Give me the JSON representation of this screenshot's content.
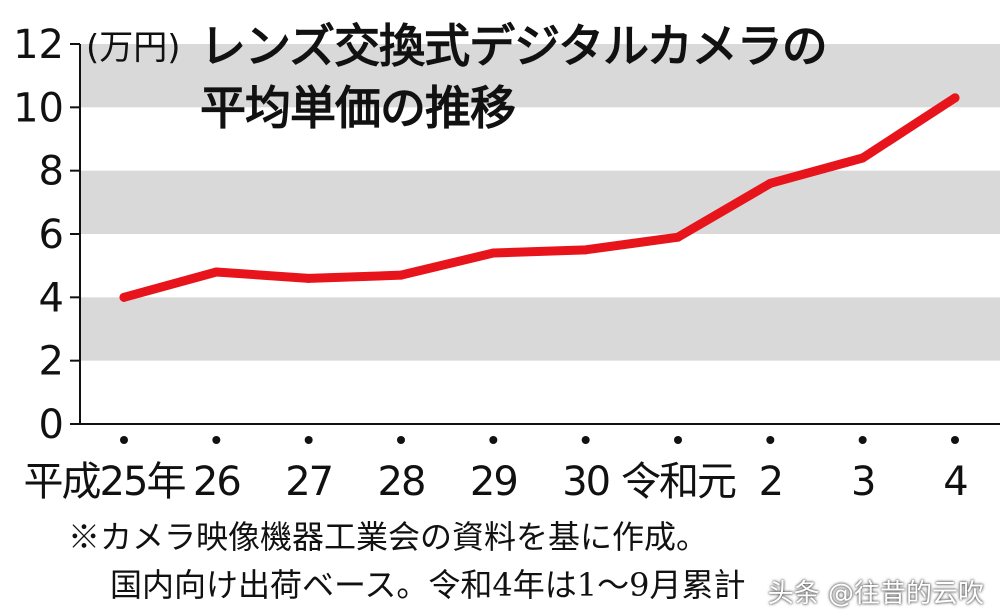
{
  "unit_label": "(万円)",
  "title_lines": [
    "レンズ交換式デジタルカメラの",
    "平均単価の推移"
  ],
  "notes": [
    "※カメラ映像機器工業会の資料を基に作成。",
    "国内向け出荷ベース。令和4年は1～9月累計"
  ],
  "watermark": "头条 @往昔的云吹",
  "colors": {
    "line": "#e8141b",
    "band": "#d9d9d9",
    "axis": "#111111"
  },
  "chart_data": {
    "type": "line",
    "title": "レンズ交換式デジタルカメラの平均単価の推移",
    "ylabel": "(万円)",
    "xlabel": "",
    "categories": [
      "平成25年",
      "26",
      "27",
      "28",
      "29",
      "30",
      "令和元",
      "2",
      "3",
      "4"
    ],
    "series": [
      {
        "values": [
          4.0,
          4.8,
          4.6,
          4.7,
          5.4,
          5.5,
          5.9,
          7.6,
          8.4,
          10.3
        ]
      }
    ],
    "ylim": [
      0,
      12
    ],
    "yticks": [
      0,
      2,
      4,
      6,
      8,
      10,
      12
    ],
    "grid": "alternating horizontal bands",
    "legend": "none"
  }
}
